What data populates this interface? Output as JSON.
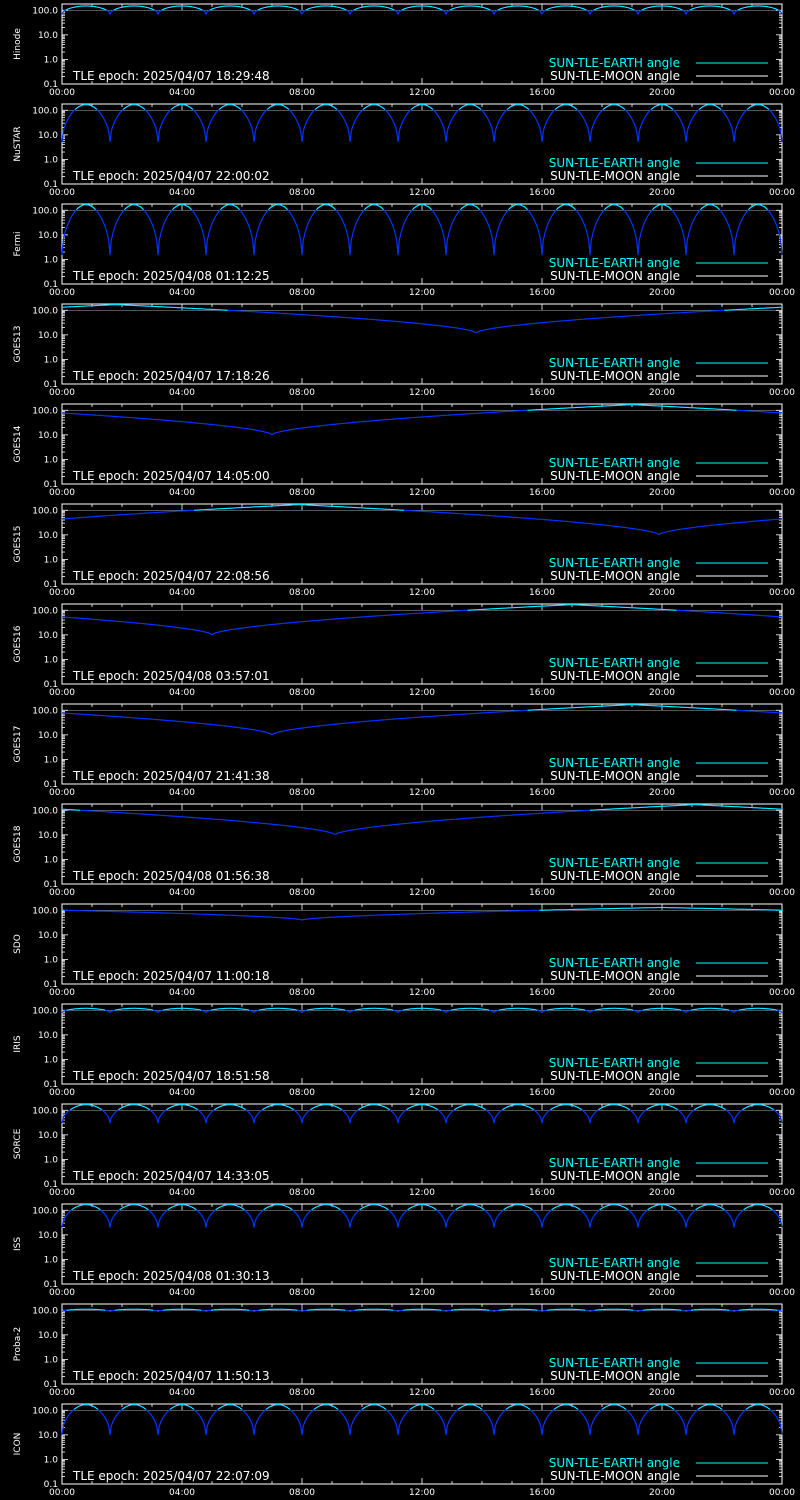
{
  "colors": {
    "earth": "#00ffff",
    "moon": "#ffffff",
    "trace": "#0033ff",
    "axis": "#ffffff",
    "bg": "#000000"
  },
  "common": {
    "x_ticks": [
      "00:00",
      "04:00",
      "08:00",
      "12:00",
      "16:00",
      "20:00",
      "00:00"
    ],
    "y_ticks": [
      "100.0",
      "10.0",
      "1.0",
      "0.1"
    ],
    "legend_earth": "SUN-TLE-EARTH angle",
    "legend_moon": "SUN-TLE-MOON angle",
    "epoch_prefix": "TLE epoch: "
  },
  "chart_data": [
    {
      "type": "line",
      "satellite": "Hinode",
      "epoch": "2025/04/07 18:29:48",
      "xlim": [
        0,
        24
      ],
      "ylim": [
        0.1,
        180
      ],
      "yscale": "log",
      "orbit": {
        "period_h": 1.6,
        "min": 70,
        "max": 150
      }
    },
    {
      "type": "line",
      "satellite": "NuSTAR",
      "epoch": "2025/04/07 22:00:02",
      "xlim": [
        0,
        24
      ],
      "ylim": [
        0.1,
        180
      ],
      "yscale": "log",
      "orbit": {
        "period_h": 1.6,
        "min": 5,
        "max": 170
      }
    },
    {
      "type": "line",
      "satellite": "Fermi",
      "epoch": "2025/04/08 01:12:25",
      "xlim": [
        0,
        24
      ],
      "ylim": [
        0.1,
        180
      ],
      "yscale": "log",
      "orbit": {
        "period_h": 1.6,
        "min": 1.5,
        "max": 170
      }
    },
    {
      "type": "line",
      "satellite": "GOES13",
      "epoch": "2025/04/07 17:18:26",
      "xlim": [
        0,
        24
      ],
      "ylim": [
        0.1,
        180
      ],
      "yscale": "log",
      "geo": {
        "t_min": 13.8,
        "min": 12,
        "max": 170
      }
    },
    {
      "type": "line",
      "satellite": "GOES14",
      "epoch": "2025/04/07 14:05:00",
      "xlim": [
        0,
        24
      ],
      "ylim": [
        0.1,
        180
      ],
      "yscale": "log",
      "geo": {
        "t_min": 7.0,
        "min": 10,
        "max": 170
      }
    },
    {
      "type": "line",
      "satellite": "GOES15",
      "epoch": "2025/04/07 22:08:56",
      "xlim": [
        0,
        24
      ],
      "ylim": [
        0.1,
        180
      ],
      "yscale": "log",
      "geo": {
        "t_min": 19.9,
        "min": 10,
        "max": 170
      }
    },
    {
      "type": "line",
      "satellite": "GOES16",
      "epoch": "2025/04/08 03:57:01",
      "xlim": [
        0,
        24
      ],
      "ylim": [
        0.1,
        180
      ],
      "yscale": "log",
      "geo": {
        "t_min": 5.0,
        "min": 10,
        "max": 170
      }
    },
    {
      "type": "line",
      "satellite": "GOES17",
      "epoch": "2025/04/07 21:41:38",
      "xlim": [
        0,
        24
      ],
      "ylim": [
        0.1,
        180
      ],
      "yscale": "log",
      "geo": {
        "t_min": 7.0,
        "min": 10,
        "max": 170
      }
    },
    {
      "type": "line",
      "satellite": "GOES18",
      "epoch": "2025/04/08 01:56:38",
      "xlim": [
        0,
        24
      ],
      "ylim": [
        0.1,
        180
      ],
      "yscale": "log",
      "geo": {
        "t_min": 9.1,
        "min": 10,
        "max": 170
      }
    },
    {
      "type": "line",
      "satellite": "SDO",
      "epoch": "2025/04/07 11:00:18",
      "xlim": [
        0,
        24
      ],
      "ylim": [
        0.1,
        180
      ],
      "yscale": "log",
      "geo": {
        "t_min": 8.0,
        "min": 40,
        "max": 130
      }
    },
    {
      "type": "line",
      "satellite": "IRIS",
      "epoch": "2025/04/07 18:51:58",
      "xlim": [
        0,
        24
      ],
      "ylim": [
        0.1,
        180
      ],
      "yscale": "log",
      "orbit": {
        "period_h": 1.6,
        "min": 80,
        "max": 120
      }
    },
    {
      "type": "line",
      "satellite": "SORCE",
      "epoch": "2025/04/07 14:33:05",
      "xlim": [
        0,
        24
      ],
      "ylim": [
        0.1,
        180
      ],
      "yscale": "log",
      "orbit": {
        "period_h": 1.6,
        "min": 30,
        "max": 170
      }
    },
    {
      "type": "line",
      "satellite": "ISS",
      "epoch": "2025/04/08 01:30:13",
      "xlim": [
        0,
        24
      ],
      "ylim": [
        0.1,
        180
      ],
      "yscale": "log",
      "orbit": {
        "period_h": 1.6,
        "min": 20,
        "max": 170
      }
    },
    {
      "type": "line",
      "satellite": "Proba-2",
      "epoch": "2025/04/07 11:50:13",
      "xlim": [
        0,
        24
      ],
      "ylim": [
        0.1,
        180
      ],
      "yscale": "log",
      "orbit": {
        "period_h": 1.6,
        "min": 90,
        "max": 110
      }
    },
    {
      "type": "line",
      "satellite": "ICON",
      "epoch": "2025/04/07 22:07:09",
      "xlim": [
        0,
        24
      ],
      "ylim": [
        0.1,
        180
      ],
      "yscale": "log",
      "orbit": {
        "period_h": 1.6,
        "min": 10,
        "max": 170
      }
    }
  ]
}
